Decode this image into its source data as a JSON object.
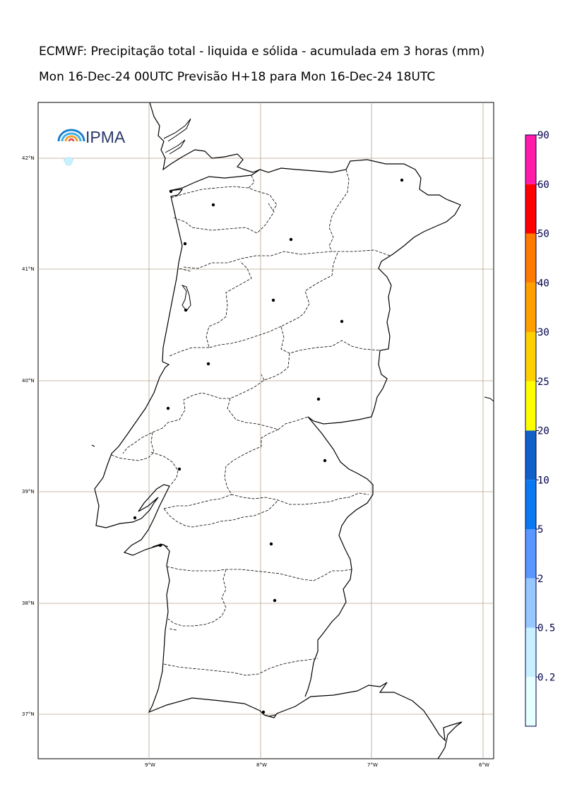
{
  "title": {
    "line1": "ECMWF: Precipitação total - liquida e sólida - acumulada em 3 horas (mm)",
    "line2": "Mon 16-Dec-24 00UTC Previsão H+18 para Mon 16-Dec-24 18UTC"
  },
  "logo": {
    "text": "IPMA"
  },
  "map": {
    "lat_labels": [
      "42°N",
      "41°N",
      "40°N",
      "39°N",
      "38°N",
      "37°N"
    ],
    "lon_labels": [
      "9°W",
      "8°W",
      "7°W",
      "6°W"
    ]
  },
  "colorbar": {
    "labels": [
      "90",
      "60",
      "50",
      "40",
      "30",
      "25",
      "20",
      "10",
      "5",
      "2",
      "0.5",
      "0.2"
    ],
    "colors": [
      "#ff1aa8",
      "#ff0000",
      "#ff7a00",
      "#ffa000",
      "#ffd000",
      "#ffff00",
      "#1060c8",
      "#0a78f0",
      "#5a96ff",
      "#96c8ff",
      "#c8f0ff",
      "#e6ffff"
    ]
  }
}
